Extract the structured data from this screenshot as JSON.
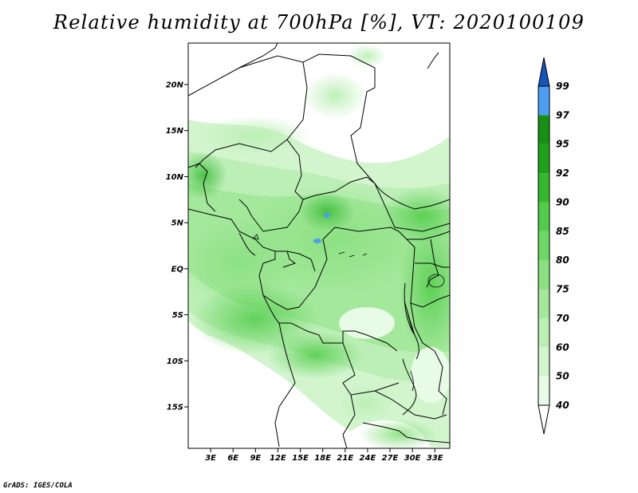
{
  "title": "Relative humidity at 700hPa [%], VT: 2020100109",
  "credit": "GrADS: IGES/COLA",
  "map": {
    "lat_range": [
      -19.5,
      24.5
    ],
    "lon_range": [
      0,
      35
    ],
    "lat_ticks": [
      {
        "value": 20,
        "label": "20N"
      },
      {
        "value": 15,
        "label": "15N"
      },
      {
        "value": 10,
        "label": "10N"
      },
      {
        "value": 5,
        "label": "5N"
      },
      {
        "value": 0,
        "label": "EQ"
      },
      {
        "value": -5,
        "label": "5S"
      },
      {
        "value": -10,
        "label": "10S"
      },
      {
        "value": -15,
        "label": "15S"
      }
    ],
    "lon_ticks": [
      {
        "value": 3,
        "label": "3E"
      },
      {
        "value": 6,
        "label": "6E"
      },
      {
        "value": 9,
        "label": "9E"
      },
      {
        "value": 12,
        "label": "12E"
      },
      {
        "value": 15,
        "label": "15E"
      },
      {
        "value": 18,
        "label": "18E"
      },
      {
        "value": 21,
        "label": "21E"
      },
      {
        "value": 24,
        "label": "24E"
      },
      {
        "value": 27,
        "label": "27E"
      },
      {
        "value": 30,
        "label": "30E"
      },
      {
        "value": 33,
        "label": "33E"
      }
    ]
  },
  "colorbar": {
    "levels": [
      "40",
      "50",
      "60",
      "70",
      "75",
      "80",
      "85",
      "90",
      "92",
      "95",
      "97",
      "99"
    ],
    "colors": [
      "#e8fbe6",
      "#d2f5cd",
      "#bcefb6",
      "#a4e89c",
      "#8ae080",
      "#6ed866",
      "#52cc4a",
      "#34b830",
      "#1ea21c",
      "#178e14",
      "#4d9ef0",
      "#1e6fd8",
      "#1555b8"
    ],
    "below_color": "#ffffff",
    "above_color": "#1555b8"
  }
}
